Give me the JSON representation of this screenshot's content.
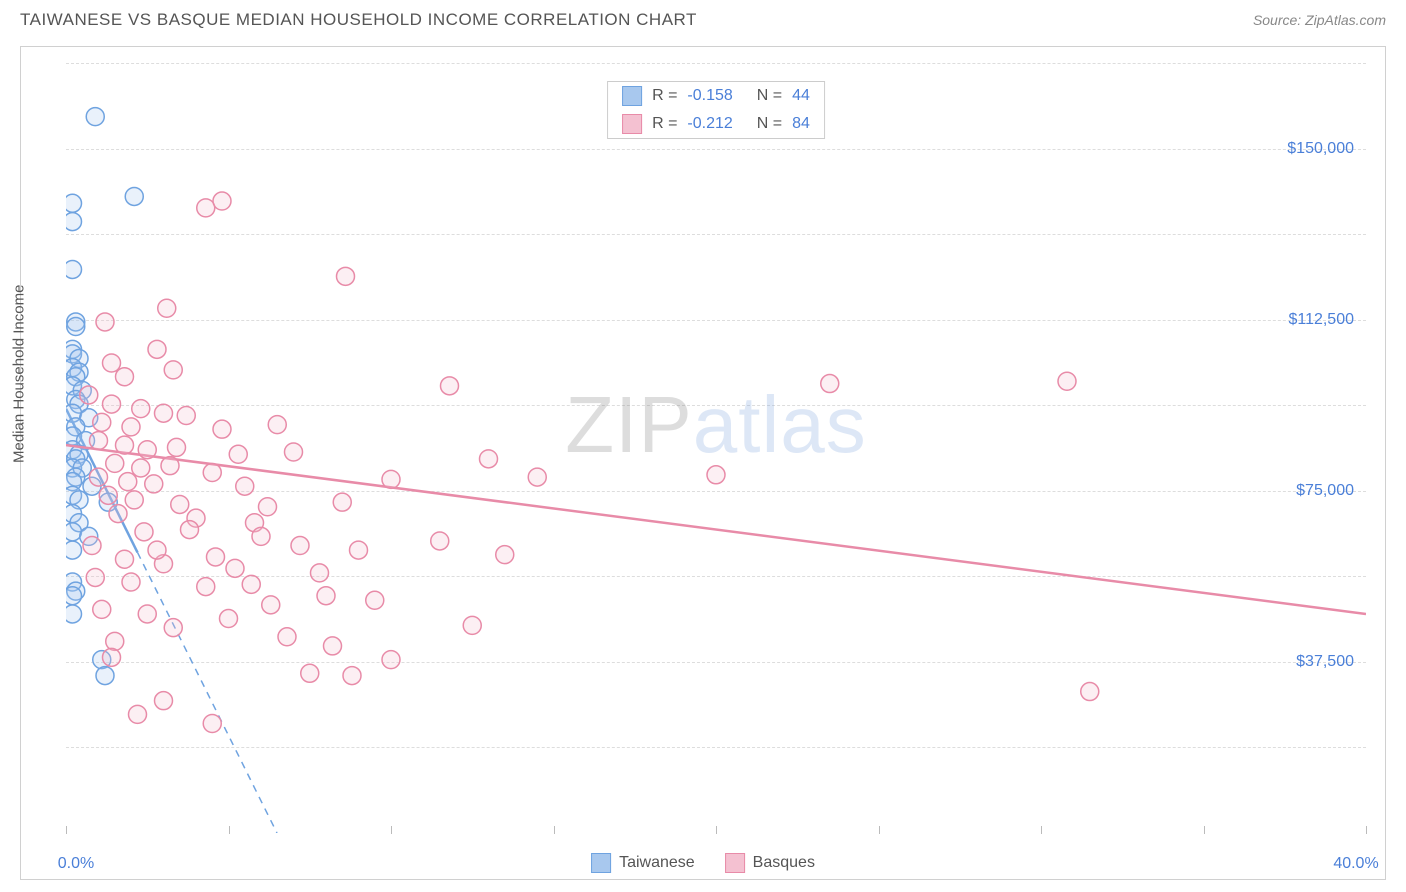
{
  "header": {
    "title": "TAIWANESE VS BASQUE MEDIAN HOUSEHOLD INCOME CORRELATION CHART",
    "source": "Source: ZipAtlas.com"
  },
  "watermark": {
    "part1": "ZIP",
    "part2": "atlas"
  },
  "chart": {
    "type": "scatter",
    "xlim": [
      0,
      40
    ],
    "ylim": [
      0,
      168750
    ],
    "x_axis": {
      "ticks": [
        0,
        5,
        10,
        15,
        20,
        25,
        30,
        35,
        40
      ],
      "label_left": "0.0%",
      "label_right": "40.0%"
    },
    "y_axis": {
      "label": "Median Household Income",
      "ticks": [
        {
          "v": 37500,
          "label": "$37,500"
        },
        {
          "v": 75000,
          "label": "$75,000"
        },
        {
          "v": 112500,
          "label": "$112,500"
        },
        {
          "v": 150000,
          "label": "$150,000"
        }
      ],
      "gridlines": [
        18750,
        37500,
        56250,
        75000,
        93750,
        112500,
        131250,
        150000,
        168750
      ]
    },
    "background_color": "#ffffff",
    "grid_color": "#dddddd",
    "marker_radius": 9,
    "marker_stroke_width": 1.5,
    "marker_fill_opacity": 0.25,
    "series": [
      {
        "name": "Taiwanese",
        "color": "#6fa3e0",
        "fill": "#a8c8ee",
        "stats": {
          "R": "-0.158",
          "N": "44"
        },
        "trend": {
          "y_at_x0": 93000,
          "y_at_x40": -480000,
          "solid_until_x": 2.2,
          "dashed": true
        },
        "points": [
          [
            0.9,
            157000
          ],
          [
            2.1,
            139500
          ],
          [
            0.2,
            138000
          ],
          [
            0.2,
            134000
          ],
          [
            0.2,
            123500
          ],
          [
            0.3,
            112000
          ],
          [
            0.3,
            111000
          ],
          [
            0.2,
            106000
          ],
          [
            0.2,
            105000
          ],
          [
            0.4,
            104000
          ],
          [
            0.2,
            102000
          ],
          [
            0.4,
            101000
          ],
          [
            0.3,
            100000
          ],
          [
            0.2,
            98000
          ],
          [
            0.5,
            97000
          ],
          [
            0.3,
            95000
          ],
          [
            0.4,
            94000
          ],
          [
            0.2,
            92000
          ],
          [
            0.7,
            91000
          ],
          [
            0.3,
            89000
          ],
          [
            0.2,
            87000
          ],
          [
            0.6,
            86000
          ],
          [
            0.2,
            84000
          ],
          [
            0.4,
            83000
          ],
          [
            0.3,
            82000
          ],
          [
            0.2,
            80000
          ],
          [
            0.5,
            80000
          ],
          [
            0.3,
            78000
          ],
          [
            0.2,
            77000
          ],
          [
            0.8,
            76000
          ],
          [
            0.2,
            74000
          ],
          [
            0.4,
            73000
          ],
          [
            1.3,
            72500
          ],
          [
            0.2,
            70000
          ],
          [
            0.4,
            68000
          ],
          [
            0.2,
            66000
          ],
          [
            0.7,
            65000
          ],
          [
            0.2,
            62000
          ],
          [
            0.2,
            55000
          ],
          [
            0.3,
            53000
          ],
          [
            0.2,
            52000
          ],
          [
            1.1,
            38000
          ],
          [
            1.2,
            34500
          ],
          [
            0.2,
            48000
          ]
        ]
      },
      {
        "name": "Basques",
        "color": "#e88ba8",
        "fill": "#f4c1d1",
        "stats": {
          "R": "-0.212",
          "N": "84"
        },
        "trend": {
          "y_at_x0": 85000,
          "y_at_x40": 48000,
          "solid_until_x": 40,
          "dashed": false
        },
        "points": [
          [
            4.3,
            137000
          ],
          [
            4.8,
            138500
          ],
          [
            8.6,
            122000
          ],
          [
            3.1,
            115000
          ],
          [
            1.2,
            112000
          ],
          [
            2.8,
            106000
          ],
          [
            1.4,
            103000
          ],
          [
            1.8,
            100000
          ],
          [
            3.3,
            101500
          ],
          [
            11.8,
            98000
          ],
          [
            23.5,
            98500
          ],
          [
            30.8,
            99000
          ],
          [
            0.7,
            96000
          ],
          [
            1.4,
            94000
          ],
          [
            2.3,
            93000
          ],
          [
            3.0,
            92000
          ],
          [
            3.7,
            91500
          ],
          [
            1.1,
            90000
          ],
          [
            2.0,
            89000
          ],
          [
            4.8,
            88500
          ],
          [
            6.5,
            89500
          ],
          [
            1.0,
            86000
          ],
          [
            1.8,
            85000
          ],
          [
            2.5,
            84000
          ],
          [
            3.4,
            84500
          ],
          [
            5.3,
            83000
          ],
          [
            7.0,
            83500
          ],
          [
            13.0,
            82000
          ],
          [
            1.5,
            81000
          ],
          [
            2.3,
            80000
          ],
          [
            3.2,
            80500
          ],
          [
            4.5,
            79000
          ],
          [
            1.0,
            78000
          ],
          [
            1.9,
            77000
          ],
          [
            2.7,
            76500
          ],
          [
            5.5,
            76000
          ],
          [
            10.0,
            77500
          ],
          [
            14.5,
            78000
          ],
          [
            20.0,
            78500
          ],
          [
            1.3,
            74000
          ],
          [
            2.1,
            73000
          ],
          [
            3.5,
            72000
          ],
          [
            6.2,
            71500
          ],
          [
            8.5,
            72500
          ],
          [
            1.6,
            70000
          ],
          [
            4.0,
            69000
          ],
          [
            5.8,
            68000
          ],
          [
            2.4,
            66000
          ],
          [
            6.0,
            65000
          ],
          [
            7.2,
            63000
          ],
          [
            9.0,
            62000
          ],
          [
            11.5,
            64000
          ],
          [
            1.8,
            60000
          ],
          [
            3.0,
            59000
          ],
          [
            5.2,
            58000
          ],
          [
            7.8,
            57000
          ],
          [
            13.5,
            61000
          ],
          [
            2.0,
            55000
          ],
          [
            4.3,
            54000
          ],
          [
            8.0,
            52000
          ],
          [
            6.3,
            50000
          ],
          [
            9.5,
            51000
          ],
          [
            2.5,
            48000
          ],
          [
            5.0,
            47000
          ],
          [
            3.3,
            45000
          ],
          [
            6.8,
            43000
          ],
          [
            12.5,
            45500
          ],
          [
            8.2,
            41000
          ],
          [
            10.0,
            38000
          ],
          [
            7.5,
            35000
          ],
          [
            8.8,
            34500
          ],
          [
            4.5,
            24000
          ],
          [
            3.0,
            29000
          ],
          [
            2.2,
            26000
          ],
          [
            1.5,
            42000
          ],
          [
            0.8,
            63000
          ],
          [
            0.9,
            56000
          ],
          [
            1.1,
            49000
          ],
          [
            1.4,
            38500
          ],
          [
            31.5,
            31000
          ],
          [
            2.8,
            62000
          ],
          [
            3.8,
            66500
          ],
          [
            4.6,
            60500
          ],
          [
            5.7,
            54500
          ]
        ]
      }
    ],
    "legend_top": {
      "rows": [
        {
          "swatch_fill": "#a8c8ee",
          "swatch_stroke": "#6fa3e0",
          "R": "-0.158",
          "N": "44"
        },
        {
          "swatch_fill": "#f4c1d1",
          "swatch_stroke": "#e88ba8",
          "R": "-0.212",
          "N": "84"
        }
      ]
    },
    "legend_bottom": {
      "items": [
        {
          "swatch_fill": "#a8c8ee",
          "swatch_stroke": "#6fa3e0",
          "label": "Taiwanese"
        },
        {
          "swatch_fill": "#f4c1d1",
          "swatch_stroke": "#e88ba8",
          "label": "Basques"
        }
      ]
    }
  }
}
